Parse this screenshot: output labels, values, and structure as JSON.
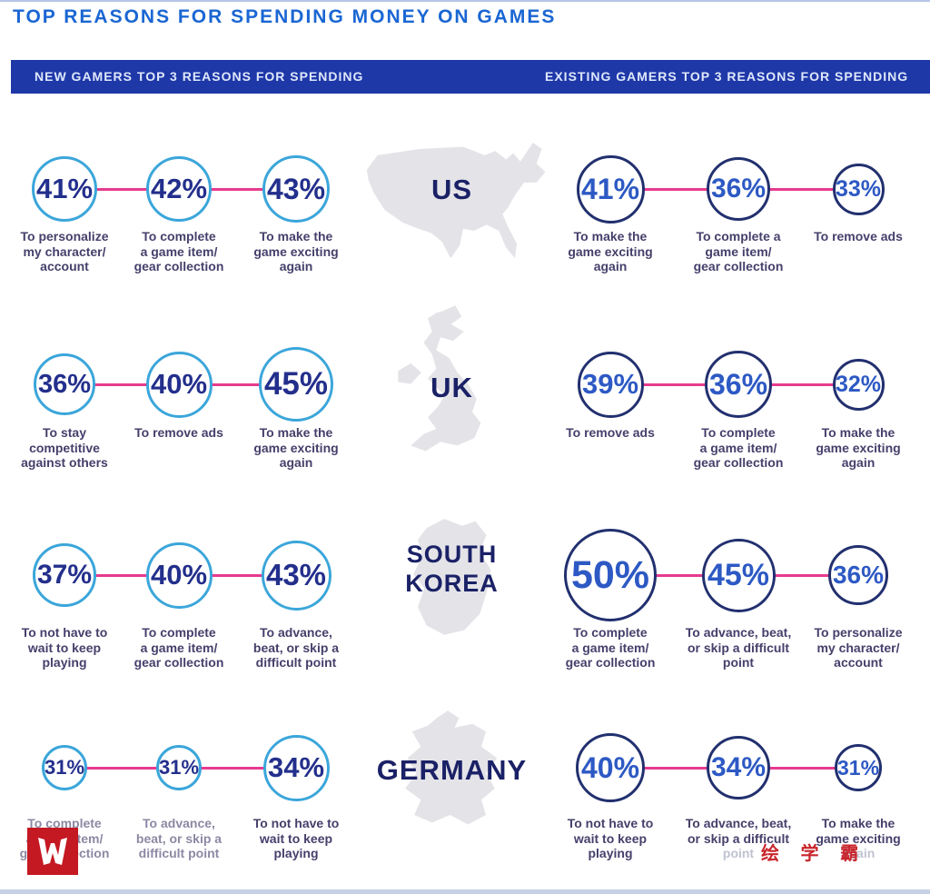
{
  "title": "TOP REASONS FOR SPENDING MONEY ON GAMES",
  "header": {
    "left": "NEW GAMERS TOP 3 REASONS FOR SPENDING",
    "right": "EXISTING GAMERS TOP 3 REASONS FOR SPENDING"
  },
  "watermark": {
    "logo_letter": "W",
    "cn_text": "绘 学 霸"
  },
  "colors": {
    "title_blue": "#1a66d3",
    "header_bar": "#1e38a8",
    "header_text": "#dfe8fa",
    "new_circle_stroke": "#3ba6da",
    "new_value_text": "#232f8c",
    "existing_circle_stroke": "#22306f",
    "existing_value_text": "#2d59c4",
    "connector_pink": "#e73a8f",
    "reason_text": "#45406b",
    "country_label": "#1a2166",
    "map_gray": "#e4e4e8",
    "watermark_red": "#c41822"
  },
  "chart_data": {
    "type": "table",
    "visual": "bubble",
    "title": "TOP REASONS FOR SPENDING MONEY ON GAMES",
    "columns": [
      "NEW GAMERS TOP 3 REASONS FOR SPENDING",
      "EXISTING GAMERS TOP 3 REASONS FOR SPENDING"
    ],
    "unit": "%",
    "rows": [
      {
        "country": "US",
        "country_lines": [
          "US"
        ],
        "new_gamers": [
          {
            "value": 41,
            "lines": [
              "To personalize",
              "my character/",
              "account"
            ],
            "size": 72
          },
          {
            "value": 42,
            "lines": [
              "To complete",
              "a game item/",
              "gear collection"
            ],
            "size": 72
          },
          {
            "value": 43,
            "lines": [
              "To make the",
              "game exciting",
              "again"
            ],
            "size": 74
          }
        ],
        "existing_gamers": [
          {
            "value": 41,
            "lines": [
              "To make the",
              "game exciting",
              "again"
            ],
            "size": 75
          },
          {
            "value": 36,
            "lines": [
              "To complete a",
              "game item/",
              "gear collection"
            ],
            "size": 70
          },
          {
            "value": 33,
            "lines": [
              "To remove ads"
            ],
            "size": 57
          }
        ]
      },
      {
        "country": "UK",
        "country_lines": [
          "UK"
        ],
        "new_gamers": [
          {
            "value": 36,
            "lines": [
              "To stay",
              "competitive",
              "against others"
            ],
            "size": 68
          },
          {
            "value": 40,
            "lines": [
              "To remove ads"
            ],
            "size": 73
          },
          {
            "value": 45,
            "lines": [
              "To make the",
              "game exciting",
              "again"
            ],
            "size": 82
          }
        ],
        "existing_gamers": [
          {
            "value": 39,
            "lines": [
              "To remove ads"
            ],
            "size": 73
          },
          {
            "value": 36,
            "lines": [
              "To complete",
              "a game item/",
              "gear collection"
            ],
            "size": 74
          },
          {
            "value": 32,
            "lines": [
              "To make the",
              "game exciting",
              "again"
            ],
            "size": 57
          }
        ]
      },
      {
        "country": "SOUTH KOREA",
        "country_lines": [
          "SOUTH",
          "KOREA"
        ],
        "new_gamers": [
          {
            "value": 37,
            "lines": [
              "To not have to",
              "wait to keep",
              "playing"
            ],
            "size": 70
          },
          {
            "value": 40,
            "lines": [
              "To complete",
              "a game item/",
              "gear collection"
            ],
            "size": 73
          },
          {
            "value": 43,
            "lines": [
              "To advance,",
              "beat, or skip a",
              "difficult point"
            ],
            "size": 77
          }
        ],
        "existing_gamers": [
          {
            "value": 50,
            "lines": [
              "To complete",
              "a game item/",
              "gear collection"
            ],
            "size": 102
          },
          {
            "value": 45,
            "lines": [
              "To advance, beat,",
              "or skip a difficult",
              "point"
            ],
            "size": 81
          },
          {
            "value": 36,
            "lines": [
              "To personalize",
              "my character/",
              "account"
            ],
            "size": 66
          }
        ]
      },
      {
        "country": "GERMANY",
        "country_lines": [
          "GERMANY"
        ],
        "new_gamers": [
          {
            "value": 31,
            "lines": [
              "To complete",
              "a game item/",
              "gear collection"
            ],
            "size": 50,
            "muted": true
          },
          {
            "value": 31,
            "lines": [
              "To advance,",
              "beat, or skip a",
              "difficult point"
            ],
            "size": 50,
            "muted": true
          },
          {
            "value": 34,
            "lines": [
              "To not have to",
              "wait to keep",
              "playing"
            ],
            "size": 73
          }
        ],
        "existing_gamers": [
          {
            "value": 40,
            "lines": [
              "To not have to",
              "wait to keep",
              "playing"
            ],
            "size": 76
          },
          {
            "value": 34,
            "lines": [
              "To advance, beat,",
              "or skip a difficult",
              "point"
            ],
            "size": 70,
            "faded_line": 2
          },
          {
            "value": 31,
            "lines": [
              "To make the",
              "game exciting",
              "again"
            ],
            "size": 52,
            "faded_line": 2
          }
        ]
      }
    ]
  }
}
